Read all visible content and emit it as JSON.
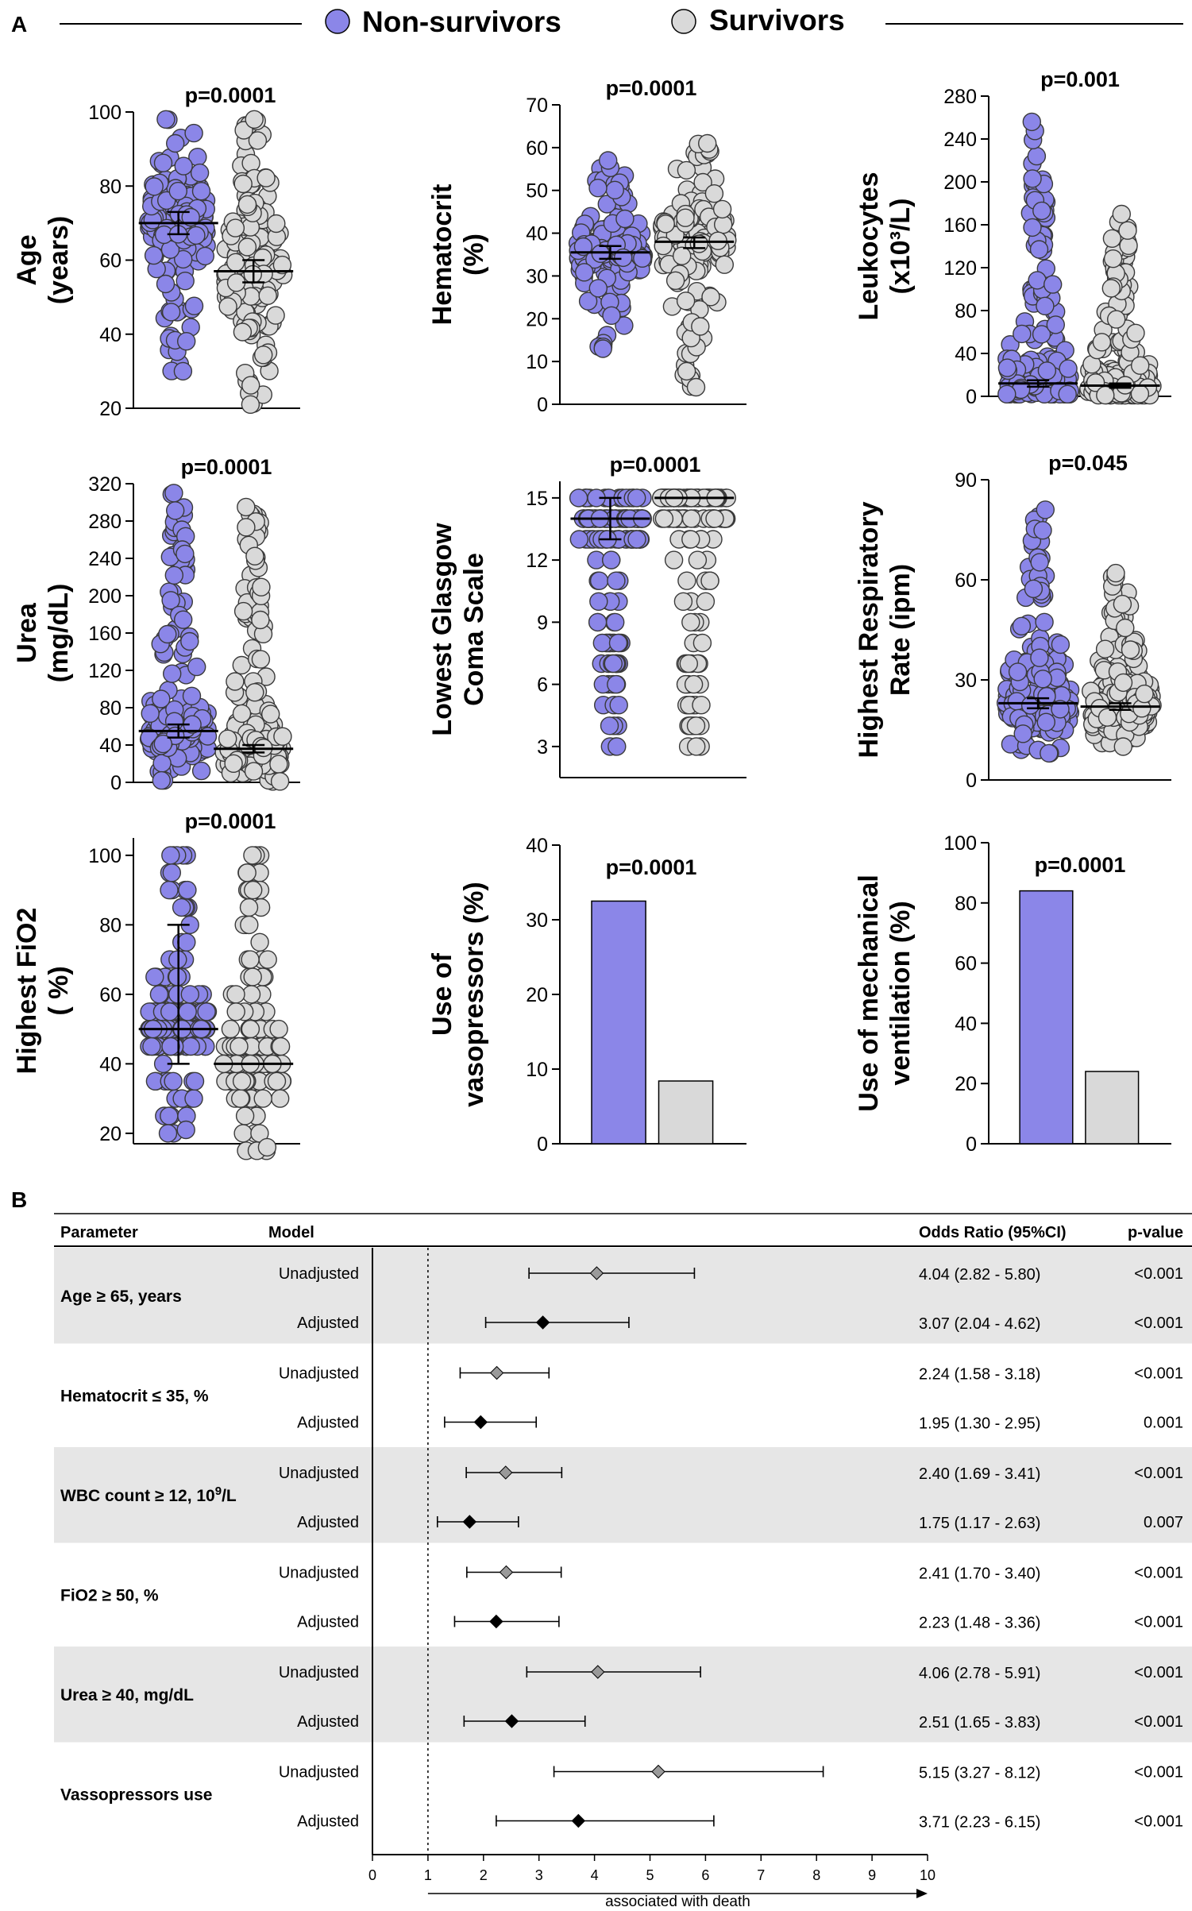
{
  "legend": {
    "non_survivors": "Non-survivors",
    "survivors": "Survivors"
  },
  "panels": {
    "a": "A",
    "b": "B"
  },
  "colors": {
    "non_survivors": "#8b86e8",
    "survivors": "#d9d9d9",
    "row_shade": "#e6e6e6",
    "diamond_unadj": "#9a9a9a",
    "diamond_adj": "#000000"
  },
  "chart_data": [
    {
      "type": "scatter",
      "id": "age",
      "ylabel": [
        "Age",
        "(years)"
      ],
      "pvalue": "p=0.0001",
      "ylim": [
        20,
        100
      ],
      "yticks": [
        20,
        40,
        60,
        80,
        100
      ],
      "groups": [
        {
          "name": "Non-survivors",
          "center": 70,
          "range": [
            30,
            98
          ],
          "error": [
            67,
            73
          ],
          "density": 0.45
        },
        {
          "name": "Survivors",
          "center": 57,
          "range": [
            21,
            98
          ],
          "error": [
            54,
            60
          ],
          "density": 0.55
        }
      ]
    },
    {
      "type": "scatter",
      "id": "hematocrit",
      "ylabel": [
        "Hematocrit",
        "(%)"
      ],
      "pvalue": "p=0.0001",
      "ylim": [
        0,
        70
      ],
      "yticks": [
        0,
        10,
        20,
        30,
        40,
        50,
        60,
        70
      ],
      "groups": [
        {
          "name": "Non-survivors",
          "center": 35.5,
          "range": [
            13,
            57
          ],
          "error": [
            34,
            37
          ],
          "density": 0.35
        },
        {
          "name": "Survivors",
          "center": 38,
          "range": [
            4,
            61
          ],
          "error": [
            36.5,
            39
          ],
          "density": 0.4
        }
      ]
    },
    {
      "type": "scatter",
      "id": "leukocytes",
      "ylabel": [
        "Leukocytes",
        "(x10³/L)"
      ],
      "pvalue": "p=0.001",
      "ylim": [
        0,
        280
      ],
      "yticks": [
        0,
        40,
        80,
        120,
        160,
        200,
        240,
        280
      ],
      "groups": [
        {
          "name": "Non-survivors",
          "center": 12,
          "range": [
            2,
            256
          ],
          "error": [
            9,
            15
          ],
          "density": 0.25
        },
        {
          "name": "Survivors",
          "center": 10,
          "range": [
            1,
            170
          ],
          "error": [
            8,
            12
          ],
          "density": 0.3
        }
      ]
    },
    {
      "type": "scatter",
      "id": "urea",
      "ylabel": [
        "Urea",
        "(mg/dL)"
      ],
      "pvalue": "p=0.0001",
      "ylim": [
        0,
        320
      ],
      "yticks": [
        0,
        40,
        80,
        120,
        160,
        200,
        240,
        280,
        320
      ],
      "groups": [
        {
          "name": "Non-survivors",
          "center": 55,
          "range": [
            2,
            310
          ],
          "error": [
            48,
            62
          ],
          "density": 0.3
        },
        {
          "name": "Survivors",
          "center": 36,
          "range": [
            1,
            295
          ],
          "error": [
            32,
            40
          ],
          "density": 0.3
        }
      ]
    },
    {
      "type": "scatter",
      "id": "glasgow",
      "ylabel": [
        "Lowest Glasgow",
        "Coma Scale"
      ],
      "pvalue": "p=0.0001",
      "ylim": [
        1.5,
        15.8
      ],
      "yticks": [
        3,
        6,
        9,
        12,
        15
      ],
      "groups": [
        {
          "name": "Non-survivors",
          "center": 14,
          "range": [
            3,
            15
          ],
          "error": [
            13,
            15
          ],
          "density": 0.3
        },
        {
          "name": "Survivors",
          "center": 15,
          "range": [
            3,
            15
          ],
          "error": [
            15,
            15
          ],
          "density": 0.3
        }
      ]
    },
    {
      "type": "scatter",
      "id": "resprate",
      "ylabel": [
        "Highest Respiratory",
        "Rate (ipm)"
      ],
      "pvalue": "p=0.045",
      "ylim": [
        0,
        90
      ],
      "yticks": [
        0,
        30,
        60,
        90
      ],
      "groups": [
        {
          "name": "Non-survivors",
          "center": 23,
          "range": [
            8,
            81
          ],
          "error": [
            21.5,
            24.5
          ],
          "density": 0.5
        },
        {
          "name": "Survivors",
          "center": 22,
          "range": [
            10,
            62
          ],
          "error": [
            21,
            23
          ],
          "density": 0.55
        }
      ]
    },
    {
      "type": "scatter",
      "id": "fio2",
      "ylabel": [
        "Highest FiO2",
        "( %)"
      ],
      "pvalue": "p=0.0001",
      "ylim": [
        17,
        105
      ],
      "yticks": [
        20,
        40,
        60,
        80,
        100
      ],
      "groups": [
        {
          "name": "Non-survivors",
          "center": 50,
          "range": [
            21,
            100
          ],
          "error": [
            40,
            80
          ],
          "density": 0.3
        },
        {
          "name": "Survivors",
          "center": 40,
          "range": [
            16,
            100
          ],
          "error": [
            40,
            40
          ],
          "density": 0.35
        }
      ]
    },
    {
      "type": "bar",
      "id": "vasopressors",
      "ylabel": [
        "Use of",
        "vasopressors (%)"
      ],
      "pvalue": "p=0.0001",
      "ylim": [
        0,
        40
      ],
      "yticks": [
        0,
        10,
        20,
        30,
        40
      ],
      "categories": [
        "Non-survivors",
        "Survivors"
      ],
      "values": [
        32.5,
        8.4
      ]
    },
    {
      "type": "bar",
      "id": "ventilation",
      "ylabel": [
        "Use of mechanical",
        "ventilation (%)"
      ],
      "pvalue": "p=0.0001",
      "ylim": [
        0,
        100
      ],
      "yticks": [
        0,
        20,
        40,
        60,
        80,
        100
      ],
      "categories": [
        "Non-survivors",
        "Survivors"
      ],
      "values": [
        84,
        24
      ]
    },
    {
      "type": "forest",
      "id": "odds",
      "headers": {
        "parameter": "Parameter",
        "model": "Model",
        "or": "Odds Ratio (95%CI)",
        "p": "p-value"
      },
      "xlim": [
        0,
        10
      ],
      "xticks": [
        0,
        1,
        2,
        3,
        4,
        5,
        6,
        7,
        8,
        9,
        10
      ],
      "reference": 1,
      "xlabel": "associated with death",
      "groups": [
        {
          "parameter": "Age ≥ 65, years",
          "sup": "",
          "suffix": "",
          "rows": [
            {
              "model": "Unadjusted",
              "or": 4.04,
              "lo": 2.82,
              "hi": 5.8,
              "label": "4.04 (2.82 - 5.80)",
              "p": "<0.001"
            },
            {
              "model": "Adjusted",
              "or": 3.07,
              "lo": 2.04,
              "hi": 4.62,
              "label": "3.07 (2.04 - 4.62)",
              "p": "<0.001"
            }
          ]
        },
        {
          "parameter": "Hematocrit ≤ 35, %",
          "sup": "",
          "suffix": "",
          "rows": [
            {
              "model": "Unadjusted",
              "or": 2.24,
              "lo": 1.58,
              "hi": 3.18,
              "label": "2.24 (1.58 - 3.18)",
              "p": "<0.001"
            },
            {
              "model": "Adjusted",
              "or": 1.95,
              "lo": 1.3,
              "hi": 2.95,
              "label": "1.95 (1.30 - 2.95)",
              "p": "0.001"
            }
          ]
        },
        {
          "parameter": "WBC count ≥ 12, 10",
          "sup": "9",
          "suffix": "/L",
          "rows": [
            {
              "model": "Unadjusted",
              "or": 2.4,
              "lo": 1.69,
              "hi": 3.41,
              "label": "2.40 (1.69 - 3.41)",
              "p": "<0.001"
            },
            {
              "model": "Adjusted",
              "or": 1.75,
              "lo": 1.17,
              "hi": 2.63,
              "label": "1.75 (1.17 - 2.63)",
              "p": "0.007"
            }
          ]
        },
        {
          "parameter": "FiO2 ≥ 50, %",
          "sup": "",
          "suffix": "",
          "rows": [
            {
              "model": "Unadjusted",
              "or": 2.41,
              "lo": 1.7,
              "hi": 3.4,
              "label": "2.41 (1.70 - 3.40)",
              "p": "<0.001"
            },
            {
              "model": "Adjusted",
              "or": 2.23,
              "lo": 1.48,
              "hi": 3.36,
              "label": "2.23 (1.48 - 3.36)",
              "p": "<0.001"
            }
          ]
        },
        {
          "parameter": "Urea ≥ 40, mg/dL",
          "sup": "",
          "suffix": "",
          "rows": [
            {
              "model": "Unadjusted",
              "or": 4.06,
              "lo": 2.78,
              "hi": 5.91,
              "label": "4.06 (2.78 - 5.91)",
              "p": "<0.001"
            },
            {
              "model": "Adjusted",
              "or": 2.51,
              "lo": 1.65,
              "hi": 3.83,
              "label": "2.51 (1.65 - 3.83)",
              "p": "<0.001"
            }
          ]
        },
        {
          "parameter": "Vassopressors use",
          "sup": "",
          "suffix": "",
          "rows": [
            {
              "model": "Unadjusted",
              "or": 5.15,
              "lo": 3.27,
              "hi": 8.12,
              "label": "5.15 (3.27 - 8.12)",
              "p": "<0.001"
            },
            {
              "model": "Adjusted",
              "or": 3.71,
              "lo": 2.23,
              "hi": 6.15,
              "label": "3.71 (2.23 - 6.15)",
              "p": "<0.001"
            }
          ]
        }
      ]
    }
  ]
}
